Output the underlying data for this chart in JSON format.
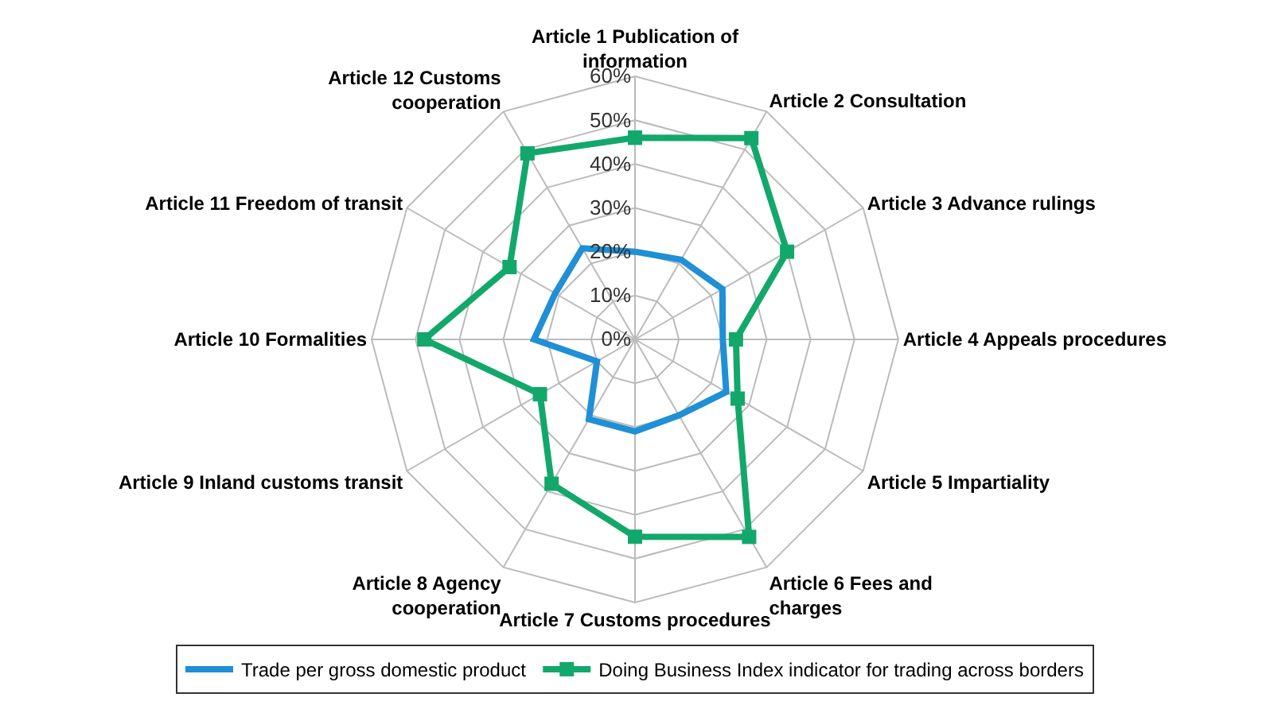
{
  "chart_data": {
    "type": "radar",
    "categories": [
      "Article 1 Publication of information",
      "Article 2 Consultation",
      "Article 3 Advance rulings",
      "Article 4 Appeals procedures",
      "Article 5 Impartiality",
      "Article 6 Fees and charges",
      "Article 7 Customs procedures",
      "Article 8 Agency cooperation",
      "Article 9 Inland customs transit",
      "Article 10 Formalities",
      "Article 11 Freedom of transit",
      "Article 12 Customs cooperation"
    ],
    "series": [
      {
        "name": "Trade per gross domestic product",
        "color": "#1f8fd6",
        "marker": "none",
        "values": [
          20,
          21,
          23,
          20,
          24,
          20,
          21,
          21,
          10,
          23,
          21,
          24
        ]
      },
      {
        "name": "Doing Business Index indicator for trading across borders",
        "color": "#13a86b",
        "marker": "square",
        "values": [
          46,
          53,
          40,
          23,
          27,
          52,
          45,
          38,
          25,
          48,
          33,
          49
        ]
      }
    ],
    "ylim": [
      0,
      60
    ],
    "yticks": [
      {
        "value": 0,
        "label": "0%"
      },
      {
        "value": 10,
        "label": "10%"
      },
      {
        "value": 20,
        "label": "20%"
      },
      {
        "value": 30,
        "label": "30%"
      },
      {
        "value": 40,
        "label": "40%"
      },
      {
        "value": 50,
        "label": "50%"
      },
      {
        "value": 60,
        "label": "60%"
      }
    ],
    "grid": true,
    "legend": "bottom",
    "line_style": "solid"
  }
}
